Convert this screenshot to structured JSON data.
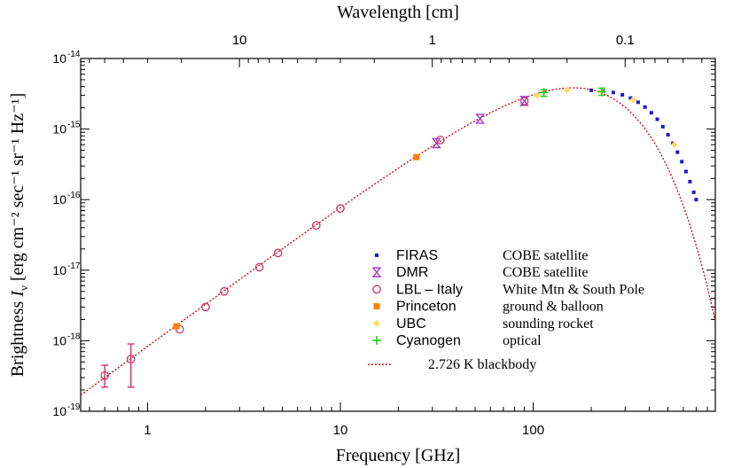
{
  "chart_data": {
    "type": "scatter",
    "xlabel": "Frequency [GHz]",
    "x2label": "Wavelength [cm]",
    "ylabel": "Brightness",
    "ylabel_symbol": "I",
    "ylabel_subscript": "ν",
    "ylabel_units": "[erg cm⁻² sec⁻¹ sr⁻¹ Hz⁻¹]",
    "xscale": "log",
    "yscale": "log",
    "xlim": [
      0.45,
      880
    ],
    "ylim": [
      1e-19,
      1e-14
    ],
    "x_ticks": [
      {
        "value": 1,
        "label": "1"
      },
      {
        "value": 10,
        "label": "10"
      },
      {
        "value": 100,
        "label": "100"
      }
    ],
    "x2_ticks": [
      {
        "value": 10,
        "label": "10"
      },
      {
        "value": 1,
        "label": "1"
      },
      {
        "value": 0.1,
        "label": "0.1"
      }
    ],
    "y_ticks": [
      {
        "value": 1e-19,
        "label": "10",
        "exponent": "-19"
      },
      {
        "value": 1e-18,
        "label": "10",
        "exponent": "-18"
      },
      {
        "value": 1e-17,
        "label": "10",
        "exponent": "-17"
      },
      {
        "value": 1e-16,
        "label": "10",
        "exponent": "-16"
      },
      {
        "value": 1e-15,
        "label": "10",
        "exponent": "-15"
      },
      {
        "value": 1e-14,
        "label": "10",
        "exponent": "-14"
      }
    ],
    "legend_position": "lower-right",
    "series": [
      {
        "name": "FIRAS",
        "description": "COBE satellite",
        "marker": "square",
        "color": "#1a1ad4",
        "points": [
          {
            "x": 200,
            "y": 3.55e-15
          },
          {
            "x": 230,
            "y": 3.45e-15
          },
          {
            "x": 260,
            "y": 3.3e-15
          },
          {
            "x": 290,
            "y": 3.05e-15
          },
          {
            "x": 320,
            "y": 2.75e-15
          },
          {
            "x": 350,
            "y": 2.4e-15
          },
          {
            "x": 380,
            "y": 2.05e-15
          },
          {
            "x": 410,
            "y": 1.7e-15
          },
          {
            "x": 440,
            "y": 1.38e-15
          },
          {
            "x": 470,
            "y": 1.08e-15
          },
          {
            "x": 500,
            "y": 8.3e-16
          },
          {
            "x": 530,
            "y": 6.3e-16
          },
          {
            "x": 560,
            "y": 4.7e-16
          },
          {
            "x": 590,
            "y": 3.45e-16
          },
          {
            "x": 620,
            "y": 2.5e-16
          },
          {
            "x": 650,
            "y": 1.8e-16
          },
          {
            "x": 680,
            "y": 1.27e-16
          },
          {
            "x": 700,
            "y": 1e-16
          }
        ]
      },
      {
        "name": "DMR",
        "description": "COBE satellite",
        "marker": "hourglass",
        "color": "#9933cc",
        "points": [
          {
            "x": 31.5,
            "y": 6.3e-16,
            "err": 0.1
          },
          {
            "x": 53,
            "y": 1.4e-15,
            "err": 0.1
          },
          {
            "x": 90,
            "y": 2.5e-15,
            "err": 0.1
          }
        ]
      },
      {
        "name": "LBL – Italy",
        "description": "White Mtn & South Pole",
        "marker": "circle",
        "color": "#cc3366",
        "points": [
          {
            "x": 0.6,
            "y": 3.2e-19,
            "ylo": 2.2e-19,
            "yhi": 4.5e-19
          },
          {
            "x": 0.82,
            "y": 5.5e-19,
            "ylo": 2.2e-19,
            "yhi": 9e-19
          },
          {
            "x": 1.47,
            "y": 1.45e-18
          },
          {
            "x": 2.0,
            "y": 3e-18
          },
          {
            "x": 2.5,
            "y": 5e-18
          },
          {
            "x": 3.8,
            "y": 1.1e-17
          },
          {
            "x": 4.75,
            "y": 1.75e-17
          },
          {
            "x": 7.5,
            "y": 4.3e-17
          },
          {
            "x": 10,
            "y": 7.5e-17
          },
          {
            "x": 33,
            "y": 7e-16
          },
          {
            "x": 90,
            "y": 2.5e-15
          }
        ]
      },
      {
        "name": "Princeton",
        "description": "ground & balloon",
        "marker": "filled-square",
        "color": "#ff8000",
        "points": [
          {
            "x": 1.41,
            "y": 1.6e-18
          },
          {
            "x": 24.8,
            "y": 4e-16
          }
        ]
      },
      {
        "name": "UBC",
        "description": "sounding rocket",
        "marker": "diamond",
        "color": "#ffe066",
        "points": [
          {
            "x": 105,
            "y": 3e-15
          },
          {
            "x": 150,
            "y": 3.55e-15
          },
          {
            "x": 225,
            "y": 3.4e-15
          },
          {
            "x": 330,
            "y": 2.6e-15
          },
          {
            "x": 540,
            "y": 6e-16
          }
        ]
      },
      {
        "name": "Cyanogen",
        "description": "optical",
        "marker": "plus",
        "color": "#22cc22",
        "points": [
          {
            "x": 113.6,
            "y": 3.3e-15,
            "ylo": 2.9e-15,
            "yhi": 3.6e-15
          },
          {
            "x": 227,
            "y": 3.4e-15,
            "ylo": 3e-15,
            "yhi": 3.8e-15
          }
        ]
      }
    ],
    "model": {
      "name": "2.726 K blackbody",
      "temperature_K": 2.726,
      "style": "dotted",
      "color": "#cc0000"
    }
  }
}
